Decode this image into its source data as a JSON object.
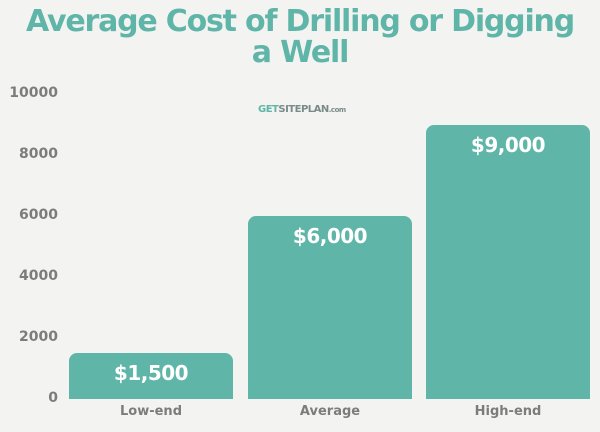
{
  "chart_data": {
    "type": "bar",
    "title": "Average Cost of Drilling or Digging a Well",
    "title_lines": [
      "Average Cost of Drilling or Digging",
      "a Well"
    ],
    "categories": [
      "Low-end",
      "Average",
      "High-end"
    ],
    "values": [
      1500,
      6000,
      9000
    ],
    "data_labels": [
      "$1,500",
      "$6,000",
      "$9,000"
    ],
    "xlabel": "",
    "ylabel": "",
    "ylim": [
      0,
      10000
    ],
    "yticks": [
      0,
      2000,
      4000,
      6000,
      8000,
      10000
    ],
    "ytick_labels": [
      "0",
      "2000",
      "4000",
      "6000",
      "8000",
      "10000"
    ],
    "grid": false,
    "legend": "none",
    "bar_color": "#5fb5a8"
  },
  "watermark": {
    "part1": "GET",
    "part2": "SITEPLAN",
    "part3": ".com"
  }
}
